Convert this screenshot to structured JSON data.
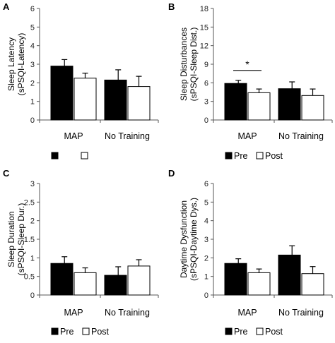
{
  "series_styles": [
    {
      "key": "pre",
      "fill": "#000000",
      "stroke": "#000000"
    },
    {
      "key": "post",
      "fill": "#ffffff",
      "stroke": "#000000"
    }
  ],
  "chart_data": [
    {
      "type": "bar",
      "panel": "A",
      "ylabel_lines": [
        "Sleep Latency",
        "(sPSQI-Latency)"
      ],
      "ylim": [
        0,
        6
      ],
      "yticks": [
        0,
        1,
        2,
        3,
        4,
        5,
        6
      ],
      "categories": [
        "MAP",
        "No Training"
      ],
      "series": [
        {
          "name": "",
          "values": [
            2.9,
            2.15
          ],
          "errors": [
            0.35,
            0.55
          ]
        },
        {
          "name": "",
          "values": [
            2.25,
            1.8
          ],
          "errors": [
            0.27,
            0.55
          ]
        }
      ],
      "legend": "bottom-left",
      "annotations": []
    },
    {
      "type": "bar",
      "panel": "B",
      "ylabel_lines": [
        "Sleep Disturbances",
        "(sPSQI-Sleep Dist.)"
      ],
      "ylim": [
        0,
        18
      ],
      "yticks": [
        0,
        3,
        6,
        9,
        12,
        15,
        18
      ],
      "categories": [
        "MAP",
        "No Training"
      ],
      "series": [
        {
          "name": "Pre",
          "values": [
            5.9,
            5.05
          ],
          "errors": [
            0.5,
            1.1
          ]
        },
        {
          "name": "Post",
          "values": [
            4.4,
            3.95
          ],
          "errors": [
            0.6,
            1.05
          ]
        }
      ],
      "legend": "bottom-left",
      "annotations": [
        {
          "text": "*",
          "category": "MAP"
        }
      ]
    },
    {
      "type": "bar",
      "panel": "C",
      "ylabel_lines": [
        "Sleep Duration",
        "(sPSQI-Sleep Dur.)"
      ],
      "ylim": [
        0,
        3
      ],
      "yticks": [
        0,
        0.5,
        1,
        1.5,
        2,
        2.5,
        3
      ],
      "categories": [
        "MAP",
        "No Training"
      ],
      "series": [
        {
          "name": "Pre",
          "values": [
            0.85,
            0.53
          ],
          "errors": [
            0.18,
            0.23
          ]
        },
        {
          "name": "Post",
          "values": [
            0.6,
            0.78
          ],
          "errors": [
            0.13,
            0.17
          ]
        }
      ],
      "legend": "bottom-left",
      "annotations": []
    },
    {
      "type": "bar",
      "panel": "D",
      "ylabel_lines": [
        "Daytime Dysfunction",
        "(sPSQI-Daytime Dys.)"
      ],
      "ylim": [
        0,
        6
      ],
      "yticks": [
        0,
        1,
        2,
        3,
        4,
        5,
        6
      ],
      "categories": [
        "MAP",
        "No Training"
      ],
      "series": [
        {
          "name": "Pre",
          "values": [
            1.7,
            2.15
          ],
          "errors": [
            0.25,
            0.5
          ]
        },
        {
          "name": "Post",
          "values": [
            1.2,
            1.15
          ],
          "errors": [
            0.2,
            0.38
          ]
        }
      ],
      "legend": "bottom-left",
      "annotations": []
    }
  ]
}
